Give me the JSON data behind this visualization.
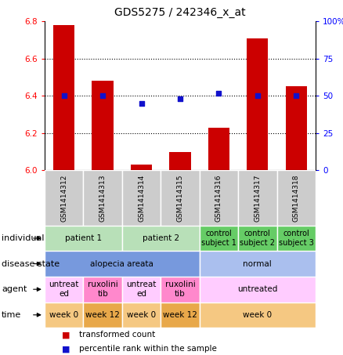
{
  "title": "GDS5275 / 242346_x_at",
  "samples": [
    "GSM1414312",
    "GSM1414313",
    "GSM1414314",
    "GSM1414315",
    "GSM1414316",
    "GSM1414317",
    "GSM1414318"
  ],
  "transformed_counts": [
    6.78,
    6.48,
    6.03,
    6.1,
    6.23,
    6.71,
    6.45
  ],
  "percentile_ranks": [
    50,
    50,
    45,
    48,
    52,
    50,
    50
  ],
  "ylim_left": [
    6.0,
    6.8
  ],
  "ylim_right": [
    0,
    100
  ],
  "yticks_left": [
    6.0,
    6.2,
    6.4,
    6.6,
    6.8
  ],
  "yticks_right": [
    0,
    25,
    50,
    75,
    100
  ],
  "bar_color": "#cc0000",
  "dot_color": "#1111cc",
  "bar_width": 0.55,
  "annotation_rows": [
    {
      "label": "individual",
      "cells": [
        {
          "text": "patient 1",
          "span": 2,
          "color": "#b8e0b8"
        },
        {
          "text": "patient 2",
          "span": 2,
          "color": "#b8e0b8"
        },
        {
          "text": "control\nsubject 1",
          "span": 1,
          "color": "#66cc66"
        },
        {
          "text": "control\nsubject 2",
          "span": 1,
          "color": "#66cc66"
        },
        {
          "text": "control\nsubject 3",
          "span": 1,
          "color": "#66cc66"
        }
      ]
    },
    {
      "label": "disease state",
      "cells": [
        {
          "text": "alopecia areata",
          "span": 4,
          "color": "#7799dd"
        },
        {
          "text": "normal",
          "span": 3,
          "color": "#aabfee"
        }
      ]
    },
    {
      "label": "agent",
      "cells": [
        {
          "text": "untreat\ned",
          "span": 1,
          "color": "#ffccff"
        },
        {
          "text": "ruxolini\ntib",
          "span": 1,
          "color": "#ff88cc"
        },
        {
          "text": "untreat\ned",
          "span": 1,
          "color": "#ffccff"
        },
        {
          "text": "ruxolini\ntib",
          "span": 1,
          "color": "#ff88cc"
        },
        {
          "text": "untreated",
          "span": 3,
          "color": "#ffccff"
        }
      ]
    },
    {
      "label": "time",
      "cells": [
        {
          "text": "week 0",
          "span": 1,
          "color": "#f5c882"
        },
        {
          "text": "week 12",
          "span": 1,
          "color": "#e8a84a"
        },
        {
          "text": "week 0",
          "span": 1,
          "color": "#f5c882"
        },
        {
          "text": "week 12",
          "span": 1,
          "color": "#e8a84a"
        },
        {
          "text": "week 0",
          "span": 3,
          "color": "#f5c882"
        }
      ]
    }
  ],
  "legend_items": [
    {
      "color": "#cc0000",
      "label": "transformed count"
    },
    {
      "color": "#1111cc",
      "label": "percentile rank within the sample"
    }
  ],
  "sample_bg_color": "#cccccc",
  "grid_color": "black",
  "grid_linestyle": "dotted",
  "grid_linewidth": 0.8
}
